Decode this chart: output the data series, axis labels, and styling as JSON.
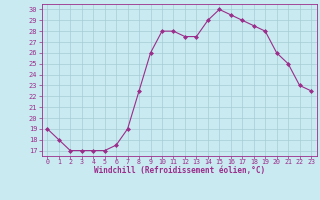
{
  "x": [
    0,
    1,
    2,
    3,
    4,
    5,
    6,
    7,
    8,
    9,
    10,
    11,
    12,
    13,
    14,
    15,
    16,
    17,
    18,
    19,
    20,
    21,
    22,
    23
  ],
  "y": [
    19,
    18,
    17,
    17,
    17,
    17,
    17.5,
    19,
    22.5,
    26,
    28,
    28,
    27.5,
    27.5,
    29,
    30,
    29.5,
    29,
    28.5,
    28,
    26,
    25,
    23,
    22.5
  ],
  "line_color": "#9b2d8b",
  "marker_color": "#9b2d8b",
  "bg_color": "#c8eaf0",
  "grid_color": "#a8ccd4",
  "xlabel": "Windchill (Refroidissement éolien,°C)",
  "ylim": [
    16.5,
    30.5
  ],
  "yticks": [
    17,
    18,
    19,
    20,
    21,
    22,
    23,
    24,
    25,
    26,
    27,
    28,
    29,
    30
  ],
  "xlim": [
    -0.5,
    23.5
  ],
  "xticks": [
    0,
    1,
    2,
    3,
    4,
    5,
    6,
    7,
    8,
    9,
    10,
    11,
    12,
    13,
    14,
    15,
    16,
    17,
    18,
    19,
    20,
    21,
    22,
    23
  ]
}
